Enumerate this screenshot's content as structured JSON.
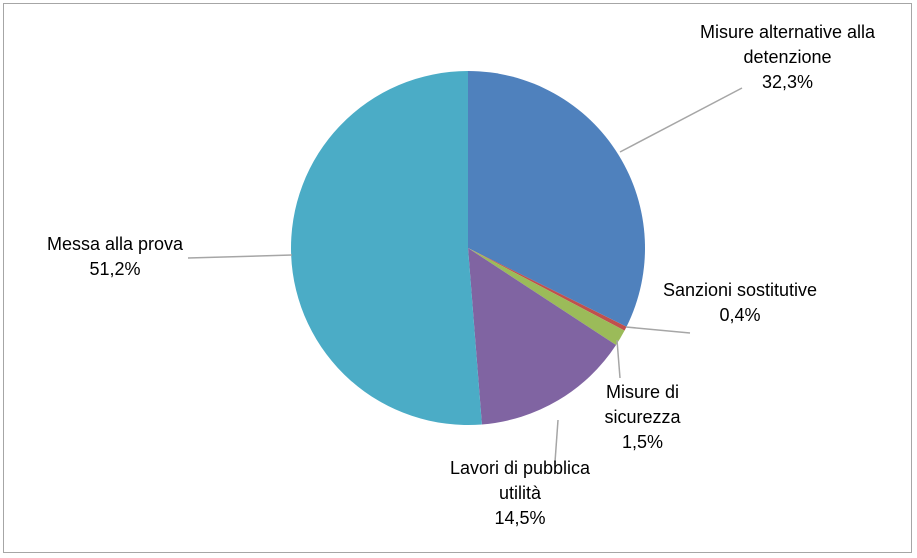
{
  "chart_data": {
    "type": "pie",
    "categories": [
      "Misure alternative alla detenzione",
      "Sanzioni sostitutive",
      "Misure di sicurezza",
      "Lavori di pubblica utilità",
      "Messa alla prova"
    ],
    "values": [
      32.3,
      0.4,
      1.5,
      14.5,
      51.2
    ],
    "value_labels": [
      "32,3%",
      "0,4%",
      "1,5%",
      "14,5%",
      "51,2%"
    ],
    "colors": [
      "#4f81bd",
      "#c0504d",
      "#9bbb59",
      "#8064a2",
      "#4bacc6"
    ]
  }
}
